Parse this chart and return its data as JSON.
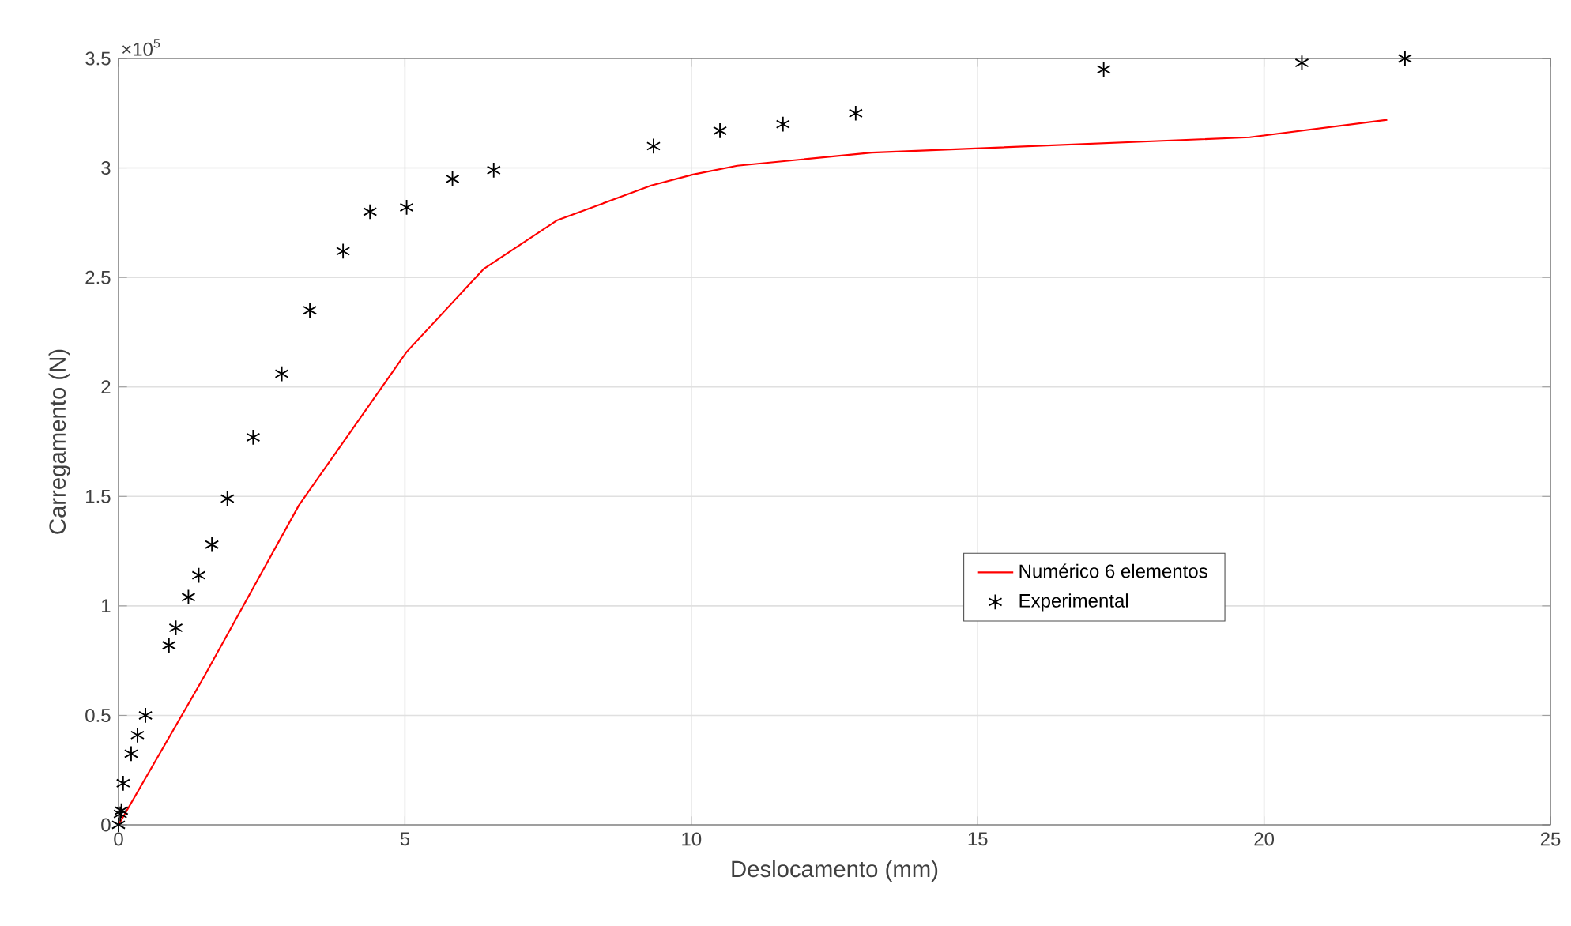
{
  "chart_data": {
    "type": "line",
    "xlabel": "Deslocamento (mm)",
    "ylabel": "Carregamento (N)",
    "annotations": [
      "×10$^{5}$"
    ],
    "xlim": [
      0,
      25
    ],
    "xticks": [
      0,
      5,
      10,
      15,
      20,
      25
    ],
    "ylim": [
      0,
      3.5
    ],
    "yticks": [
      0,
      0.5,
      1,
      1.5,
      2,
      2.5,
      3,
      3.5
    ],
    "grid": true,
    "legend": "right",
    "series": [
      {
        "name": "Numérico 6 elementos",
        "color": "#ff0000",
        "marker": "none",
        "line_style": "solid",
        "x": [
          0,
          1.5,
          3.15,
          5.03,
          6.38,
          7.65,
          9.3,
          10.03,
          10.8,
          13.15,
          19.75,
          22.15
        ],
        "values": [
          0,
          0.68,
          1.46,
          2.16,
          2.54,
          2.76,
          2.92,
          2.97,
          3.01,
          3.07,
          3.14,
          3.22
        ]
      },
      {
        "name": "Experimental",
        "type": "scatter",
        "color": "#000000",
        "marker": "cross",
        "x": [
          0,
          0.03,
          0.05,
          0.08,
          0.22,
          0.33,
          0.47,
          0.88,
          1.0,
          1.22,
          1.4,
          1.63,
          1.9,
          2.35,
          2.85,
          3.34,
          3.92,
          4.39,
          5.03,
          5.83,
          6.55,
          9.34,
          10.5,
          11.6,
          12.87,
          17.2,
          20.66,
          22.46
        ],
        "values": [
          0,
          0.05,
          0.065,
          0.19,
          0.325,
          0.41,
          0.5,
          0.82,
          0.9,
          1.04,
          1.14,
          1.28,
          1.49,
          1.77,
          2.06,
          2.35,
          2.62,
          2.8,
          2.82,
          2.95,
          2.99,
          3.1,
          3.17,
          3.2,
          3.25,
          3.45,
          3.48,
          3.5
        ]
      }
    ]
  }
}
